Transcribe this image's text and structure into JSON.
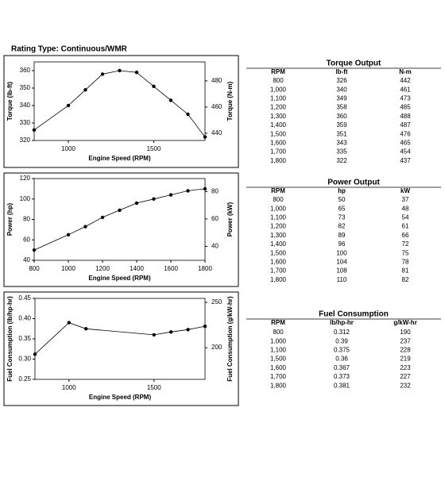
{
  "title": "Rating Type: Continuous/WMR",
  "chart_data": [
    {
      "type": "line",
      "x_label": "Engine Speed (RPM)",
      "y_label": "Torque (lb-ft)",
      "y2_label": "Torque (N-m)",
      "x": [
        800,
        1000,
        1100,
        1200,
        1300,
        1400,
        1500,
        1600,
        1700,
        1800
      ],
      "series": [
        {
          "color": "#000000",
          "values": [
            326,
            340,
            349,
            358,
            360,
            359,
            351,
            343,
            335,
            322
          ]
        }
      ],
      "xlim": [
        800,
        1800
      ],
      "xticks": [
        1000,
        1500
      ],
      "ylim": [
        320,
        365
      ],
      "yticks": [
        320,
        330,
        340,
        350,
        360
      ],
      "y2lim": [
        434.5,
        494.5
      ],
      "y2ticks": [
        440,
        460,
        480
      ]
    },
    {
      "type": "line",
      "x_label": "Engine Speed (RPM)",
      "y_label": "Power (hp)",
      "y2_label": "Power (kW)",
      "x": [
        800,
        1000,
        1100,
        1200,
        1300,
        1400,
        1500,
        1600,
        1700,
        1800
      ],
      "series": [
        {
          "color": "#000000",
          "values": [
            50,
            65,
            73,
            82,
            89,
            96,
            100,
            104,
            108,
            110
          ]
        }
      ],
      "xlim": [
        800,
        1800
      ],
      "xticks": [
        800,
        1000,
        1200,
        1400,
        1600,
        1800
      ],
      "ylim": [
        40,
        120
      ],
      "yticks": [
        40,
        60,
        80,
        100,
        120
      ],
      "y2lim": [
        29.8,
        89.5
      ],
      "y2ticks": [
        40,
        60,
        80
      ]
    },
    {
      "type": "line",
      "x_label": "Engine Speed (RPM)",
      "y_label": "Fuel Consumption (lb/hp-hr)",
      "y2_label": "Fuel Consumption (g/kW-hr)",
      "x": [
        800,
        1000,
        1100,
        1500,
        1600,
        1700,
        1800
      ],
      "series": [
        {
          "color": "#000000",
          "values": [
            0.312,
            0.39,
            0.375,
            0.36,
            0.367,
            0.373,
            0.381
          ]
        }
      ],
      "xlim": [
        800,
        1800
      ],
      "xticks": [
        1000,
        1500
      ],
      "ylim": [
        0.25,
        0.45
      ],
      "yticks": [
        0.25,
        {
          "value": 0.3,
          "label": "0.30"
        },
        0.35,
        {
          "value": 0.4,
          "label": "0.40"
        },
        0.45
      ],
      "y2lim": [
        165,
        254.4
      ],
      "y2ticks": [
        200,
        250
      ]
    }
  ],
  "tables": [
    {
      "title": "Torque Output",
      "header": [
        "RPM",
        "lb-ft",
        "N-m"
      ],
      "rows": [
        [
          "800",
          "326",
          "442"
        ],
        [
          "1,000",
          "340",
          "461"
        ],
        [
          "1,100",
          "349",
          "473"
        ],
        [
          "1,200",
          "358",
          "485"
        ],
        [
          "1,300",
          "360",
          "488"
        ],
        [
          "1,400",
          "359",
          "487"
        ],
        [
          "1,500",
          "351",
          "476"
        ],
        [
          "1,600",
          "343",
          "465"
        ],
        [
          "1,700",
          "335",
          "454"
        ],
        [
          "1,800",
          "322",
          "437"
        ]
      ]
    },
    {
      "title": "Power Output",
      "header": [
        "RPM",
        "hp",
        "kW"
      ],
      "rows": [
        [
          "800",
          "50",
          "37"
        ],
        [
          "1,000",
          "65",
          "48"
        ],
        [
          "1,100",
          "73",
          "54"
        ],
        [
          "1,200",
          "82",
          "61"
        ],
        [
          "1,300",
          "89",
          "66"
        ],
        [
          "1,400",
          "96",
          "72"
        ],
        [
          "1,500",
          "100",
          "75"
        ],
        [
          "1,600",
          "104",
          "78"
        ],
        [
          "1,700",
          "108",
          "81"
        ],
        [
          "1,800",
          "110",
          "82"
        ]
      ]
    },
    {
      "title": "Fuel Consumption",
      "header": [
        "RPM",
        "lb/hp-hr",
        "g/kW-hr"
      ],
      "rows": [
        [
          "800",
          "0.312",
          "190"
        ],
        [
          "1,000",
          "0.39",
          "237"
        ],
        [
          "1,100",
          "0.375",
          "228"
        ],
        [
          "1,500",
          "0.36",
          "219"
        ],
        [
          "1,600",
          "0.367",
          "223"
        ],
        [
          "1,700",
          "0.373",
          "227"
        ],
        [
          "1,800",
          "0.381",
          "232"
        ]
      ]
    }
  ]
}
